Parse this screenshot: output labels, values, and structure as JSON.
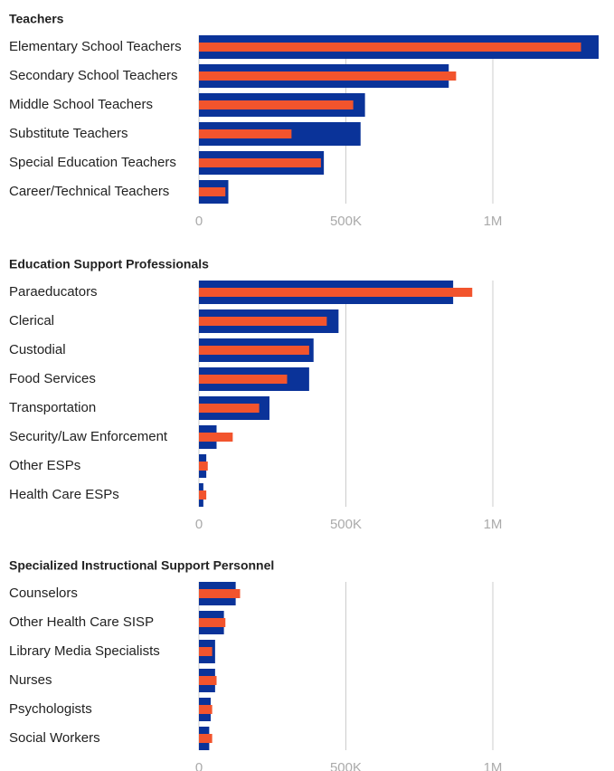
{
  "chart_data": [
    {
      "type": "bar",
      "title": "Teachers",
      "categories": [
        "Elementary School Teachers",
        "Secondary School Teachers",
        "Middle School Teachers",
        "Substitute Teachers",
        "Special Education Teachers",
        "Career/Technical Teachers"
      ],
      "series": [
        {
          "color": "#0a3399",
          "values": [
            1360000,
            850000,
            565000,
            550000,
            425000,
            100000
          ]
        },
        {
          "color": "#f2542d",
          "values": [
            1300000,
            875000,
            525000,
            315000,
            415000,
            90000
          ]
        }
      ],
      "xlim": [
        0,
        1360000
      ],
      "xticks": [
        0,
        {
          "value": 500000,
          "label": "500K"
        },
        {
          "value": 1000000,
          "label": "1M"
        }
      ],
      "grid": true
    },
    {
      "type": "bar",
      "title": "Education Support Professionals",
      "categories": [
        "Paraeducators",
        "Clerical",
        "Custodial",
        "Food Services",
        "Transportation",
        "Security/Law Enforcement",
        "Other ESPs",
        "Health Care ESPs"
      ],
      "series": [
        {
          "color": "#0a3399",
          "values": [
            865000,
            475000,
            390000,
            375000,
            240000,
            60000,
            25000,
            15000
          ]
        },
        {
          "color": "#f2542d",
          "values": [
            930000,
            435000,
            375000,
            300000,
            205000,
            115000,
            30000,
            25000
          ]
        }
      ],
      "xlim": [
        0,
        1360000
      ],
      "xticks": [
        0,
        {
          "value": 500000,
          "label": "500K"
        },
        {
          "value": 1000000,
          "label": "1M"
        }
      ],
      "grid": true
    },
    {
      "type": "bar",
      "title": "Specialized Instructional Support Personnel",
      "categories": [
        "Counselors",
        "Other Health Care SISP",
        "Library Media Specialists",
        "Nurses",
        "Psychologists",
        "Social Workers"
      ],
      "series": [
        {
          "color": "#0a3399",
          "values": [
            125000,
            85000,
            55000,
            55000,
            40000,
            35000
          ]
        },
        {
          "color": "#f2542d",
          "values": [
            140000,
            90000,
            45000,
            60000,
            45000,
            45000
          ]
        }
      ],
      "xlim": [
        0,
        1360000
      ],
      "xticks": [
        0,
        {
          "value": 500000,
          "label": "500K"
        },
        {
          "value": 1000000,
          "label": "1M"
        }
      ],
      "grid": true
    }
  ]
}
